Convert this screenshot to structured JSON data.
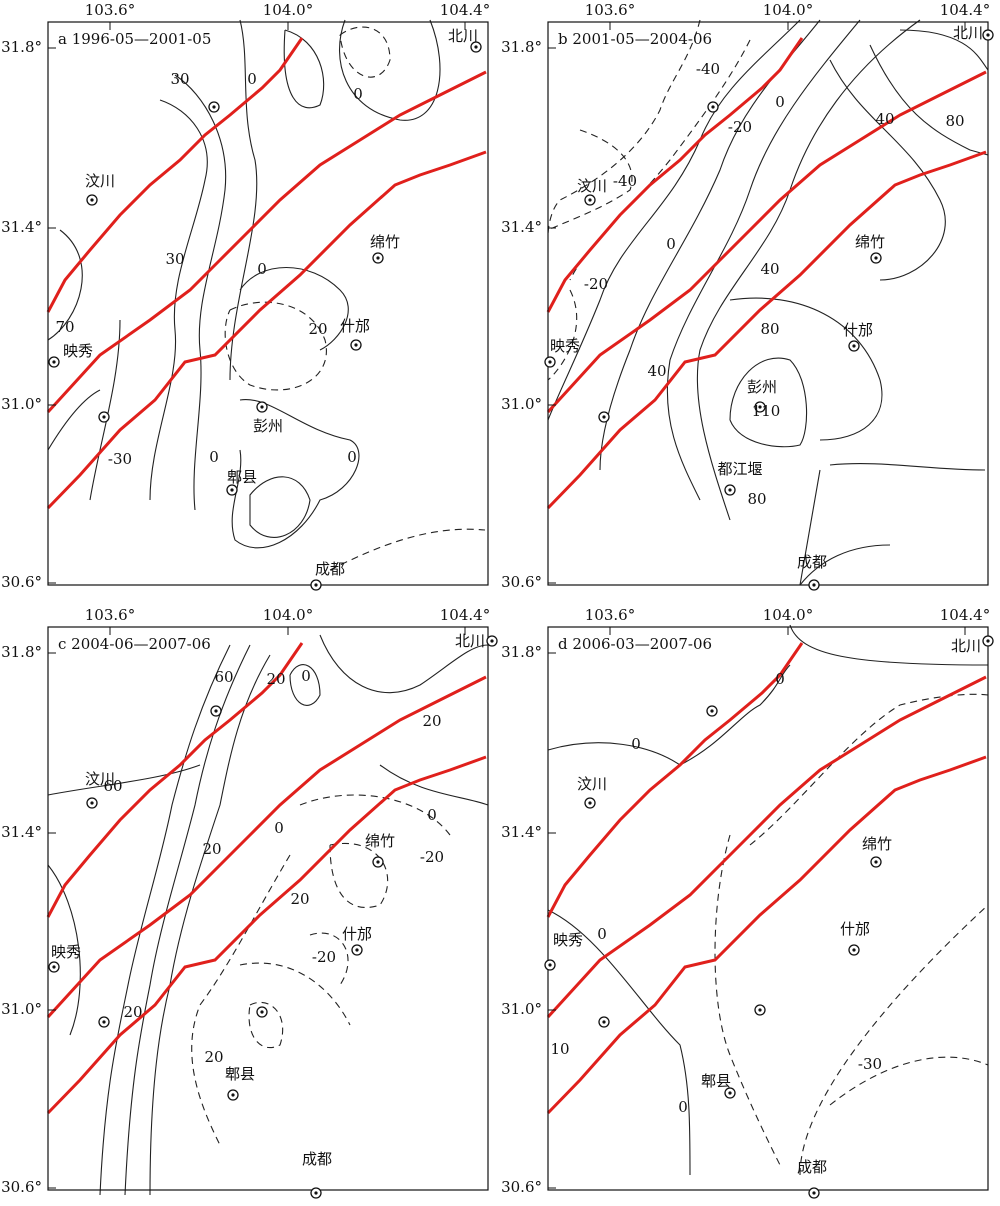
{
  "panels": [
    {
      "title": "a 1996-05—2001-05",
      "x_ticks": [
        "103.6°",
        "104.0°",
        "104.4°"
      ],
      "y_ticks": [
        "31.8°",
        "31.4°",
        "31.0°",
        "30.6°"
      ],
      "cities": [
        "北川",
        "汶川",
        "绵竹",
        "什邡",
        "映秀",
        "彭州",
        "郫县",
        "成都"
      ],
      "contour_labels": [
        30,
        0,
        0,
        30,
        0,
        20,
        70,
        0,
        -30,
        0
      ]
    },
    {
      "title": "b 2001-05—2004-06",
      "x_ticks": [
        "103.6°",
        "104.0°",
        "104.4°"
      ],
      "y_ticks": [
        "31.8°",
        "31.4°",
        "31.0°",
        "30.6°"
      ],
      "cities": [
        "北川",
        "汶川",
        "绵竹",
        "什邡",
        "映秀",
        "彭州",
        "都江堰",
        "成都"
      ],
      "contour_labels": [
        -40,
        -20,
        0,
        40,
        80,
        -40,
        0,
        -20,
        40,
        80,
        40,
        110,
        80
      ]
    },
    {
      "title": "c 2004-06—2007-06",
      "x_ticks": [
        "103.6°",
        "104.0°",
        "104.4°"
      ],
      "y_ticks": [
        "31.8°",
        "31.4°",
        "31.0°",
        "30.6°"
      ],
      "cities": [
        "北川",
        "汶川",
        "绵竹",
        "什邡",
        "映秀",
        "郫县",
        "成都"
      ],
      "contour_labels": [
        60,
        20,
        0,
        60,
        20,
        0,
        0,
        20,
        -20,
        20,
        -20,
        20,
        20
      ]
    },
    {
      "title": "d 2006-03—2007-06",
      "x_ticks": [
        "103.6°",
        "104.0°",
        "104.4°"
      ],
      "y_ticks": [
        "31.8°",
        "31.4°",
        "31.0°",
        "30.6°"
      ],
      "cities": [
        "北川",
        "汶川",
        "绵竹",
        "什邡",
        "映秀",
        "郫县",
        "成都"
      ],
      "contour_labels": [
        0,
        0,
        0,
        10,
        0,
        -30
      ]
    }
  ]
}
